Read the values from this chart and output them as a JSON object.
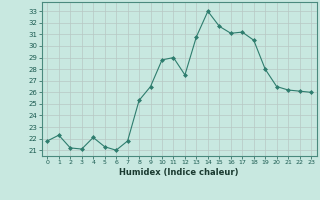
{
  "x": [
    0,
    1,
    2,
    3,
    4,
    5,
    6,
    7,
    8,
    9,
    10,
    11,
    12,
    13,
    14,
    15,
    16,
    17,
    18,
    19,
    20,
    21,
    22,
    23
  ],
  "y": [
    21.8,
    22.3,
    21.2,
    21.1,
    22.1,
    21.3,
    21.0,
    21.8,
    25.3,
    26.5,
    28.8,
    29.0,
    27.5,
    30.8,
    33.0,
    31.7,
    31.1,
    31.2,
    30.5,
    28.0,
    26.5,
    26.2,
    26.1,
    26.0
  ],
  "line_color": "#2e7d6e",
  "marker": "D",
  "marker_size": 2.0,
  "bg_color": "#c8e8e0",
  "grid_color": "#b8c8c4",
  "xlabel": "Humidex (Indice chaleur)",
  "ylabel_ticks": [
    21,
    22,
    23,
    24,
    25,
    26,
    27,
    28,
    29,
    30,
    31,
    32,
    33
  ],
  "xtick_labels": [
    "0",
    "1",
    "2",
    "3",
    "4",
    "5",
    "6",
    "7",
    "8",
    "9",
    "10",
    "11",
    "12",
    "13",
    "14",
    "15",
    "16",
    "17",
    "18",
    "19",
    "20",
    "21",
    "22",
    "23"
  ],
  "ylim": [
    20.5,
    33.8
  ],
  "xlim": [
    -0.5,
    23.5
  ]
}
